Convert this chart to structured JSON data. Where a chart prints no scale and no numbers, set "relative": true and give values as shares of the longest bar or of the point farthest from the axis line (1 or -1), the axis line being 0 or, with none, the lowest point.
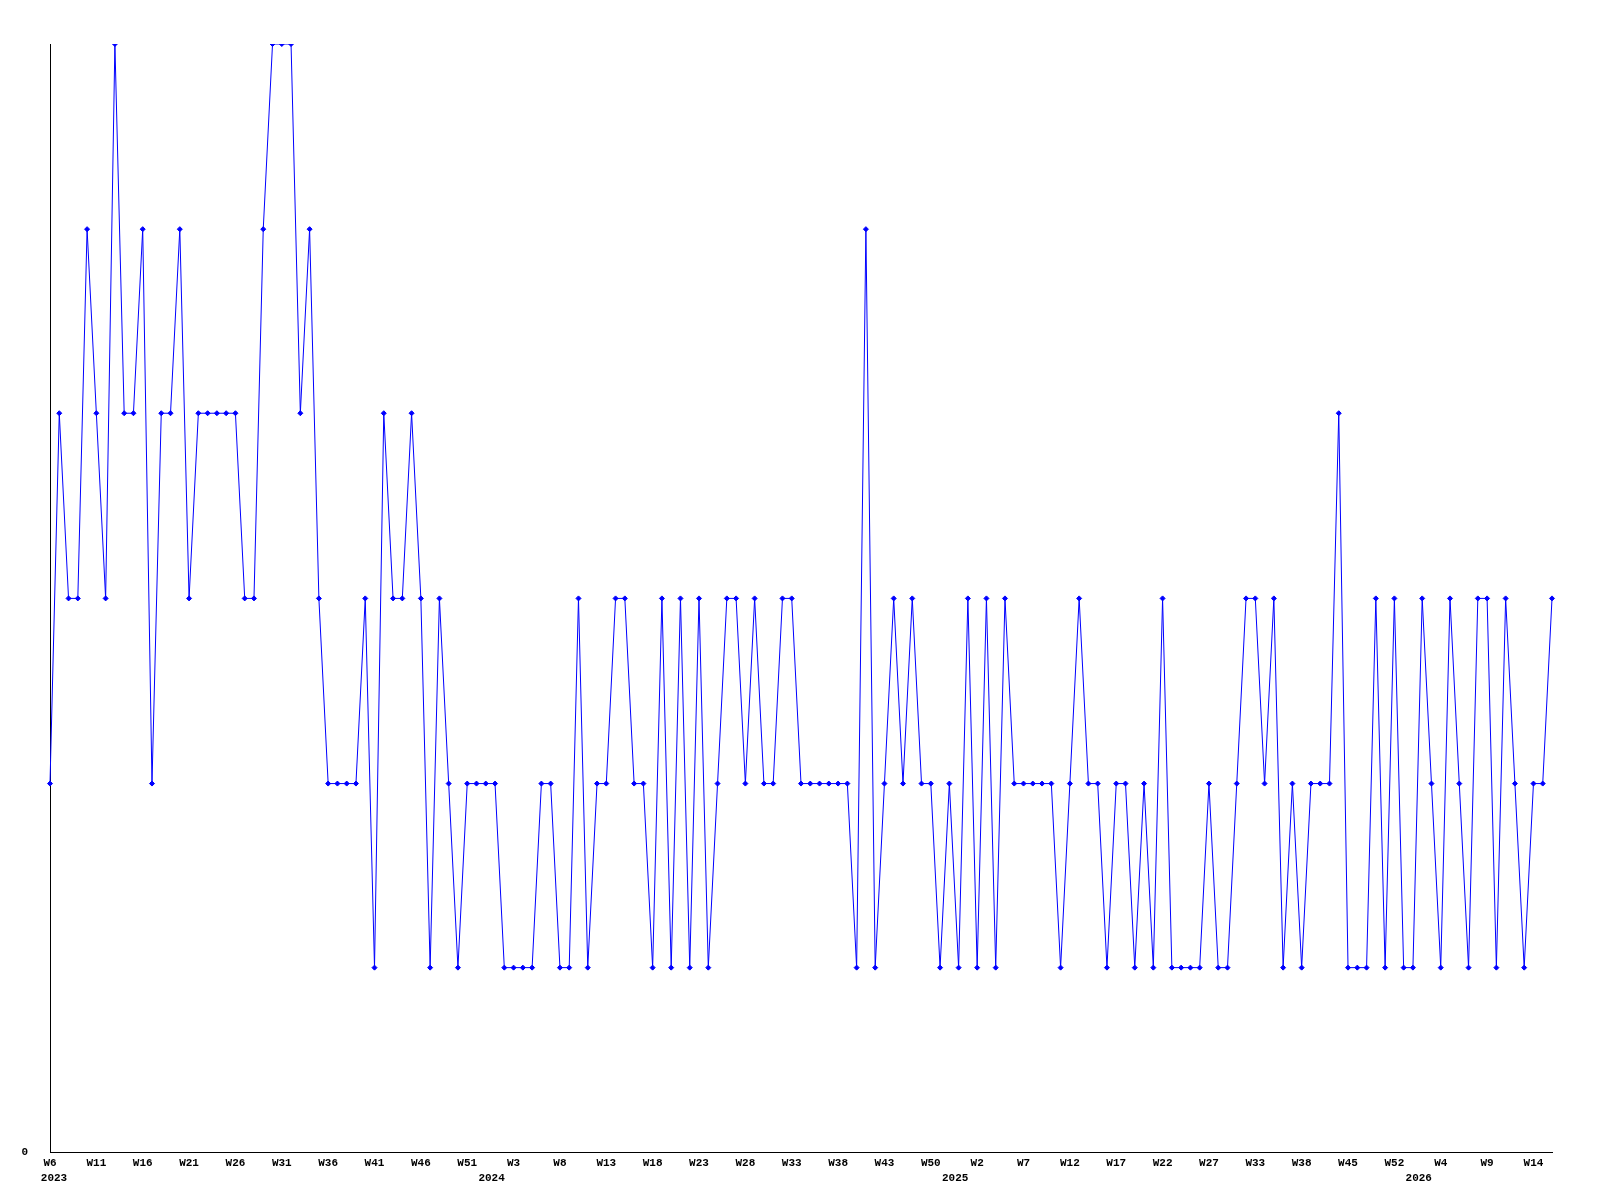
{
  "chart_data": {
    "type": "line",
    "relative": true,
    "color": "#0000ff",
    "marker": "diamond",
    "grid": false,
    "legend": false,
    "categories": [
      "W6",
      null,
      null,
      null,
      null,
      "W11",
      null,
      null,
      null,
      null,
      "W16",
      null,
      null,
      null,
      null,
      "W21",
      null,
      null,
      null,
      null,
      "W26",
      null,
      null,
      null,
      null,
      "W31",
      null,
      null,
      null,
      null,
      "W36",
      null,
      null,
      null,
      null,
      "W41",
      null,
      null,
      null,
      null,
      "W46",
      null,
      null,
      null,
      null,
      "W51",
      null,
      null,
      null,
      null,
      "W3",
      null,
      null,
      null,
      null,
      "W8",
      null,
      null,
      null,
      null,
      "W13",
      null,
      null,
      null,
      null,
      "W18",
      null,
      null,
      null,
      null,
      "W23",
      null,
      null,
      null,
      null,
      "W28",
      null,
      null,
      null,
      null,
      "W33",
      null,
      null,
      null,
      null,
      "W38",
      null,
      null,
      null,
      null,
      "W43",
      null,
      null,
      null,
      null,
      "W50",
      null,
      null,
      null,
      null,
      "W2",
      null,
      null,
      null,
      null,
      "W7",
      null,
      null,
      null,
      null,
      "W12",
      null,
      null,
      null,
      null,
      "W17",
      null,
      null,
      null,
      null,
      "W22",
      null,
      null,
      null,
      null,
      "W27",
      null,
      null,
      null,
      null,
      "W33",
      null,
      null,
      null,
      null,
      "W38",
      null,
      null,
      null,
      null,
      "W45",
      null,
      null,
      null,
      null,
      "W52",
      null,
      null,
      null,
      null,
      "W4",
      null,
      null,
      null,
      null,
      "W9",
      null,
      null,
      null,
      null,
      "W14",
      null,
      null
    ],
    "values": [
      0.333,
      0.667,
      0.5,
      0.5,
      0.833,
      0.667,
      0.5,
      1,
      0.667,
      0.667,
      0.833,
      0.333,
      0.667,
      0.667,
      0.833,
      0.5,
      0.667,
      0.667,
      0.667,
      0.667,
      0.667,
      0.5,
      0.5,
      0.833,
      1,
      1,
      1,
      0.667,
      0.833,
      0.5,
      0.333,
      0.333,
      0.333,
      0.333,
      0.5,
      0.167,
      0.667,
      0.5,
      0.5,
      0.667,
      0.5,
      0.167,
      0.5,
      0.333,
      0.167,
      0.333,
      0.333,
      0.333,
      0.333,
      0.167,
      0.167,
      0.167,
      0.167,
      0.333,
      0.333,
      0.167,
      0.167,
      0.5,
      0.167,
      0.333,
      0.333,
      0.5,
      0.5,
      0.333,
      0.333,
      0.167,
      0.5,
      0.167,
      0.5,
      0.167,
      0.5,
      0.167,
      0.333,
      0.5,
      0.5,
      0.333,
      0.5,
      0.333,
      0.333,
      0.5,
      0.5,
      0.333,
      0.333,
      0.333,
      0.333,
      0.333,
      0.333,
      0.167,
      0.833,
      0.167,
      0.333,
      0.5,
      0.333,
      0.5,
      0.333,
      0.333,
      0.167,
      0.333,
      0.167,
      0.5,
      0.167,
      0.5,
      0.167,
      0.5,
      0.333,
      0.333,
      0.333,
      0.333,
      0.333,
      0.167,
      0.333,
      0.5,
      0.333,
      0.333,
      0.167,
      0.333,
      0.333,
      0.167,
      0.333,
      0.167,
      0.5,
      0.167,
      0.167,
      0.167,
      0.167,
      0.333,
      0.167,
      0.167,
      0.333,
      0.5,
      0.5,
      0.333,
      0.5,
      0.167,
      0.333,
      0.167,
      0.333,
      0.333,
      0.333,
      0.667,
      0.167,
      0.167,
      0.167,
      0.5,
      0.167,
      0.5,
      0.167,
      0.167,
      0.5,
      0.333,
      0.167,
      0.5,
      0.333,
      0.167,
      0.5,
      0.5,
      0.167,
      0.5,
      0.333,
      0.167,
      0.333,
      0.333,
      0.5
    ],
    "annotations": [
      "0",
      "2023",
      "2024",
      "2025",
      "2026"
    ]
  }
}
